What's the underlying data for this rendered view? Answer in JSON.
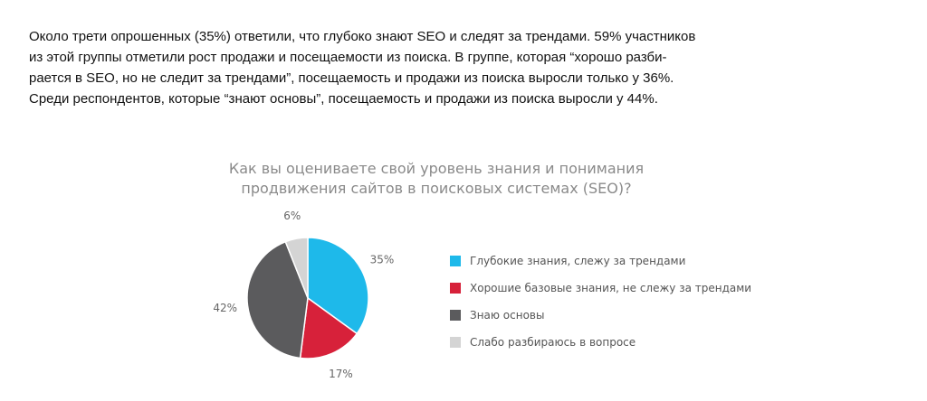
{
  "paragraph": {
    "lines": [
      "Около трети опрошенных (35%) ответили, что глубоко знают SEO и следят за трендами. 59% участников",
      "из этой группы отметили рост продажи и посещаемости из поиска. В группе, которая “хорошо разби-",
      "рается в SEO, но не следит за трендами”, посещаемость и продажи из поиска выросли только у 36%.",
      "Среди респондентов, которые “знают основы”, посещаемость и продажи из поиска выросли у 44%."
    ]
  },
  "chart_data": {
    "type": "pie",
    "title_lines": [
      "Как вы оцениваете свой уровень знания и понимания",
      "продвижения сайтов в поисковых системах (SEO)?"
    ],
    "categories": [
      "Глубокие знания, слежу за трендами",
      "Хорошие базовые знания, не слежу за трендами",
      "Знаю основы",
      "Слабо разбираюсь в вопросе"
    ],
    "values": [
      35,
      17,
      42,
      6
    ],
    "value_labels": [
      "35%",
      "17%",
      "42%",
      "6%"
    ],
    "colors": [
      "#1eb9ea",
      "#d7213a",
      "#5b5b5d",
      "#d4d4d4"
    ],
    "legend_position": "right"
  }
}
